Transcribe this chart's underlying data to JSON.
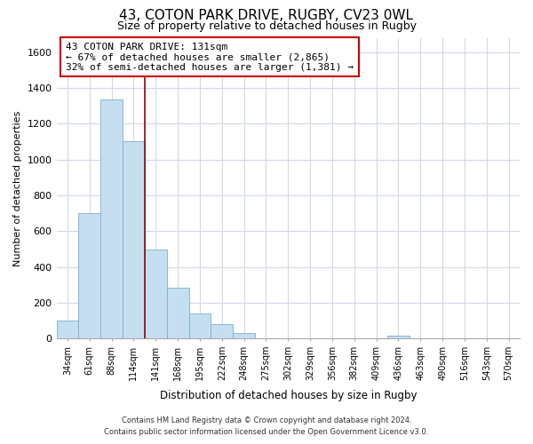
{
  "title": "43, COTON PARK DRIVE, RUGBY, CV23 0WL",
  "subtitle": "Size of property relative to detached houses in Rugby",
  "xlabel": "Distribution of detached houses by size in Rugby",
  "ylabel": "Number of detached properties",
  "bins": [
    "34sqm",
    "61sqm",
    "88sqm",
    "114sqm",
    "141sqm",
    "168sqm",
    "195sqm",
    "222sqm",
    "248sqm",
    "275sqm",
    "302sqm",
    "329sqm",
    "356sqm",
    "382sqm",
    "409sqm",
    "436sqm",
    "463sqm",
    "490sqm",
    "516sqm",
    "543sqm",
    "570sqm"
  ],
  "values": [
    100,
    700,
    1335,
    1100,
    495,
    285,
    140,
    80,
    30,
    0,
    0,
    0,
    0,
    0,
    0,
    15,
    0,
    0,
    0,
    0,
    0
  ],
  "bar_color": "#c5dff0",
  "bar_edge_color": "#7aafd0",
  "marker_line_color": "#990000",
  "annotation_line1": "43 COTON PARK DRIVE: 131sqm",
  "annotation_line2": "← 67% of detached houses are smaller (2,865)",
  "annotation_line3": "32% of semi-detached houses are larger (1,381) →",
  "annotation_box_color": "#ffffff",
  "annotation_box_edge_color": "#cc0000",
  "ylim": [
    0,
    1680
  ],
  "yticks": [
    0,
    200,
    400,
    600,
    800,
    1000,
    1200,
    1400,
    1600
  ],
  "footer_line1": "Contains HM Land Registry data © Crown copyright and database right 2024.",
  "footer_line2": "Contains public sector information licensed under the Open Government Licence v3.0.",
  "background_color": "#ffffff",
  "grid_color": "#d0d8e8",
  "title_fontsize": 11,
  "subtitle_fontsize": 9
}
